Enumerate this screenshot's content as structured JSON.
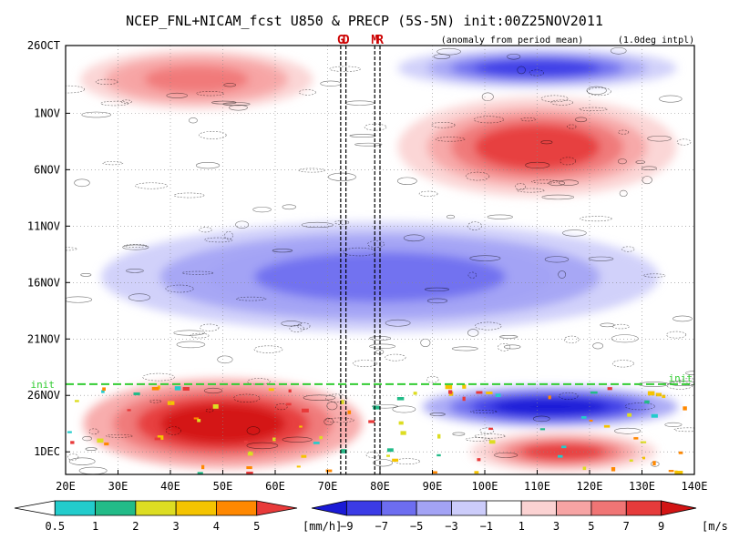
{
  "chart_data": {
    "type": "heatmap",
    "title": "NCEP_FNL+NICAM_fcst U850 & PRECP (5S-5N) init:00Z25NOV2011",
    "subtitle_left": "(anomaly from period mean)",
    "subtitle_right": "(1.0deg intpl)",
    "x_axis": {
      "range": [
        20,
        140
      ],
      "ticks": [
        {
          "value": 20,
          "label": "20E"
        },
        {
          "value": 30,
          "label": "30E"
        },
        {
          "value": 40,
          "label": "40E"
        },
        {
          "value": 50,
          "label": "50E"
        },
        {
          "value": 60,
          "label": "60E"
        },
        {
          "value": 70,
          "label": "70E"
        },
        {
          "value": 80,
          "label": "80E"
        },
        {
          "value": 90,
          "label": "90E"
        },
        {
          "value": 100,
          "label": "100E"
        },
        {
          "value": 110,
          "label": "110E"
        },
        {
          "value": 120,
          "label": "120E"
        },
        {
          "value": 130,
          "label": "130E"
        },
        {
          "value": 140,
          "label": "140E"
        }
      ]
    },
    "y_axis": {
      "range": [
        "2011-10-26",
        "2011-12-03"
      ],
      "ticks": [
        {
          "date": "2011-10-26",
          "label": "26OCT"
        },
        {
          "date": "2011-11-01",
          "label": "1NOV"
        },
        {
          "date": "2011-11-06",
          "label": "6NOV"
        },
        {
          "date": "2011-11-11",
          "label": "11NOV"
        },
        {
          "date": "2011-11-16",
          "label": "16NOV"
        },
        {
          "date": "2011-11-21",
          "label": "21NOV"
        },
        {
          "date": "2011-11-26",
          "label": "26NOV"
        },
        {
          "date": "2011-12-01",
          "label": "1DEC"
        }
      ]
    },
    "markers": [
      {
        "label": "G",
        "lon": 72.5,
        "color": "#cc0000"
      },
      {
        "label": "D",
        "lon": 73.5,
        "color": "#cc0000"
      },
      {
        "label": "M",
        "lon": 79.0,
        "color": "#cc0000"
      },
      {
        "label": "R",
        "lon": 80.0,
        "color": "#cc0000"
      }
    ],
    "init": {
      "label": "init",
      "date": "2011-11-25",
      "color": "#33cc33"
    },
    "u850": {
      "units": "[m/s]",
      "levels": [
        -9,
        -7,
        -5,
        -3,
        -1,
        1,
        3,
        5,
        7,
        9
      ],
      "colors": [
        "#1a1ad6",
        "#3b3be6",
        "#6d6df0",
        "#a3a3f5",
        "#ccccfa",
        "#ffffff",
        "#fbd2d2",
        "#f7a4a4",
        "#f07575",
        "#e63b3b",
        "#d21414"
      ],
      "anomaly_features": [
        {
          "lon_range": [
            20,
            70
          ],
          "dates": [
            "2011-10-26",
            "2011-11-01"
          ],
          "sign": "positive",
          "peak": 5
        },
        {
          "lon_range": [
            80,
            140
          ],
          "dates": [
            "2011-10-26",
            "2011-10-30"
          ],
          "sign": "negative",
          "peak": -7
        },
        {
          "lon_range": [
            80,
            140
          ],
          "dates": [
            "2011-10-30",
            "2011-11-09"
          ],
          "sign": "positive",
          "peak": 7
        },
        {
          "lon_range": [
            20,
            140
          ],
          "dates": [
            "2011-11-10",
            "2011-11-21"
          ],
          "sign": "negative",
          "peak": -5
        },
        {
          "lon_range": [
            20,
            80
          ],
          "dates": [
            "2011-11-24",
            "2011-12-03"
          ],
          "sign": "positive",
          "peak": 9
        },
        {
          "lon_range": [
            85,
            140
          ],
          "dates": [
            "2011-11-25",
            "2011-11-29"
          ],
          "sign": "negative",
          "peak": -9
        },
        {
          "lon_range": [
            95,
            135
          ],
          "dates": [
            "2011-11-29",
            "2011-12-03"
          ],
          "sign": "positive",
          "peak": 7
        }
      ]
    },
    "precip": {
      "units": "[mm/h]",
      "levels": [
        0.5,
        1,
        2,
        3,
        4,
        5
      ],
      "colors": [
        "#ffffff",
        "#22cccc",
        "#22bb88",
        "#dddd22",
        "#f5c400",
        "#ff8800",
        "#e83a3a"
      ]
    }
  }
}
